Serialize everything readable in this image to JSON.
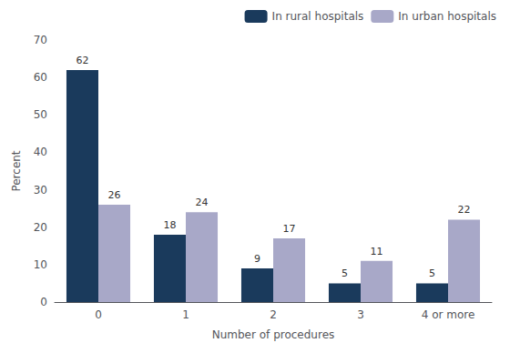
{
  "chart_data": {
    "type": "bar",
    "categories": [
      "0",
      "1",
      "2",
      "3",
      "4 or more"
    ],
    "series": [
      {
        "name": "In rural hospitals",
        "color": "#1a3a5c",
        "values": [
          62,
          18,
          9,
          5,
          5
        ]
      },
      {
        "name": "In urban hospitals",
        "color": "#a8a8c8",
        "values": [
          26,
          24,
          17,
          11,
          22
        ]
      }
    ],
    "xlabel": "Number of procedures",
    "ylabel": "Percent",
    "ylim": [
      0,
      70
    ],
    "yticks": [
      0,
      10,
      20,
      30,
      40,
      50,
      60,
      70
    ],
    "grid": false,
    "legend": "upper right",
    "data_labels": true
  }
}
